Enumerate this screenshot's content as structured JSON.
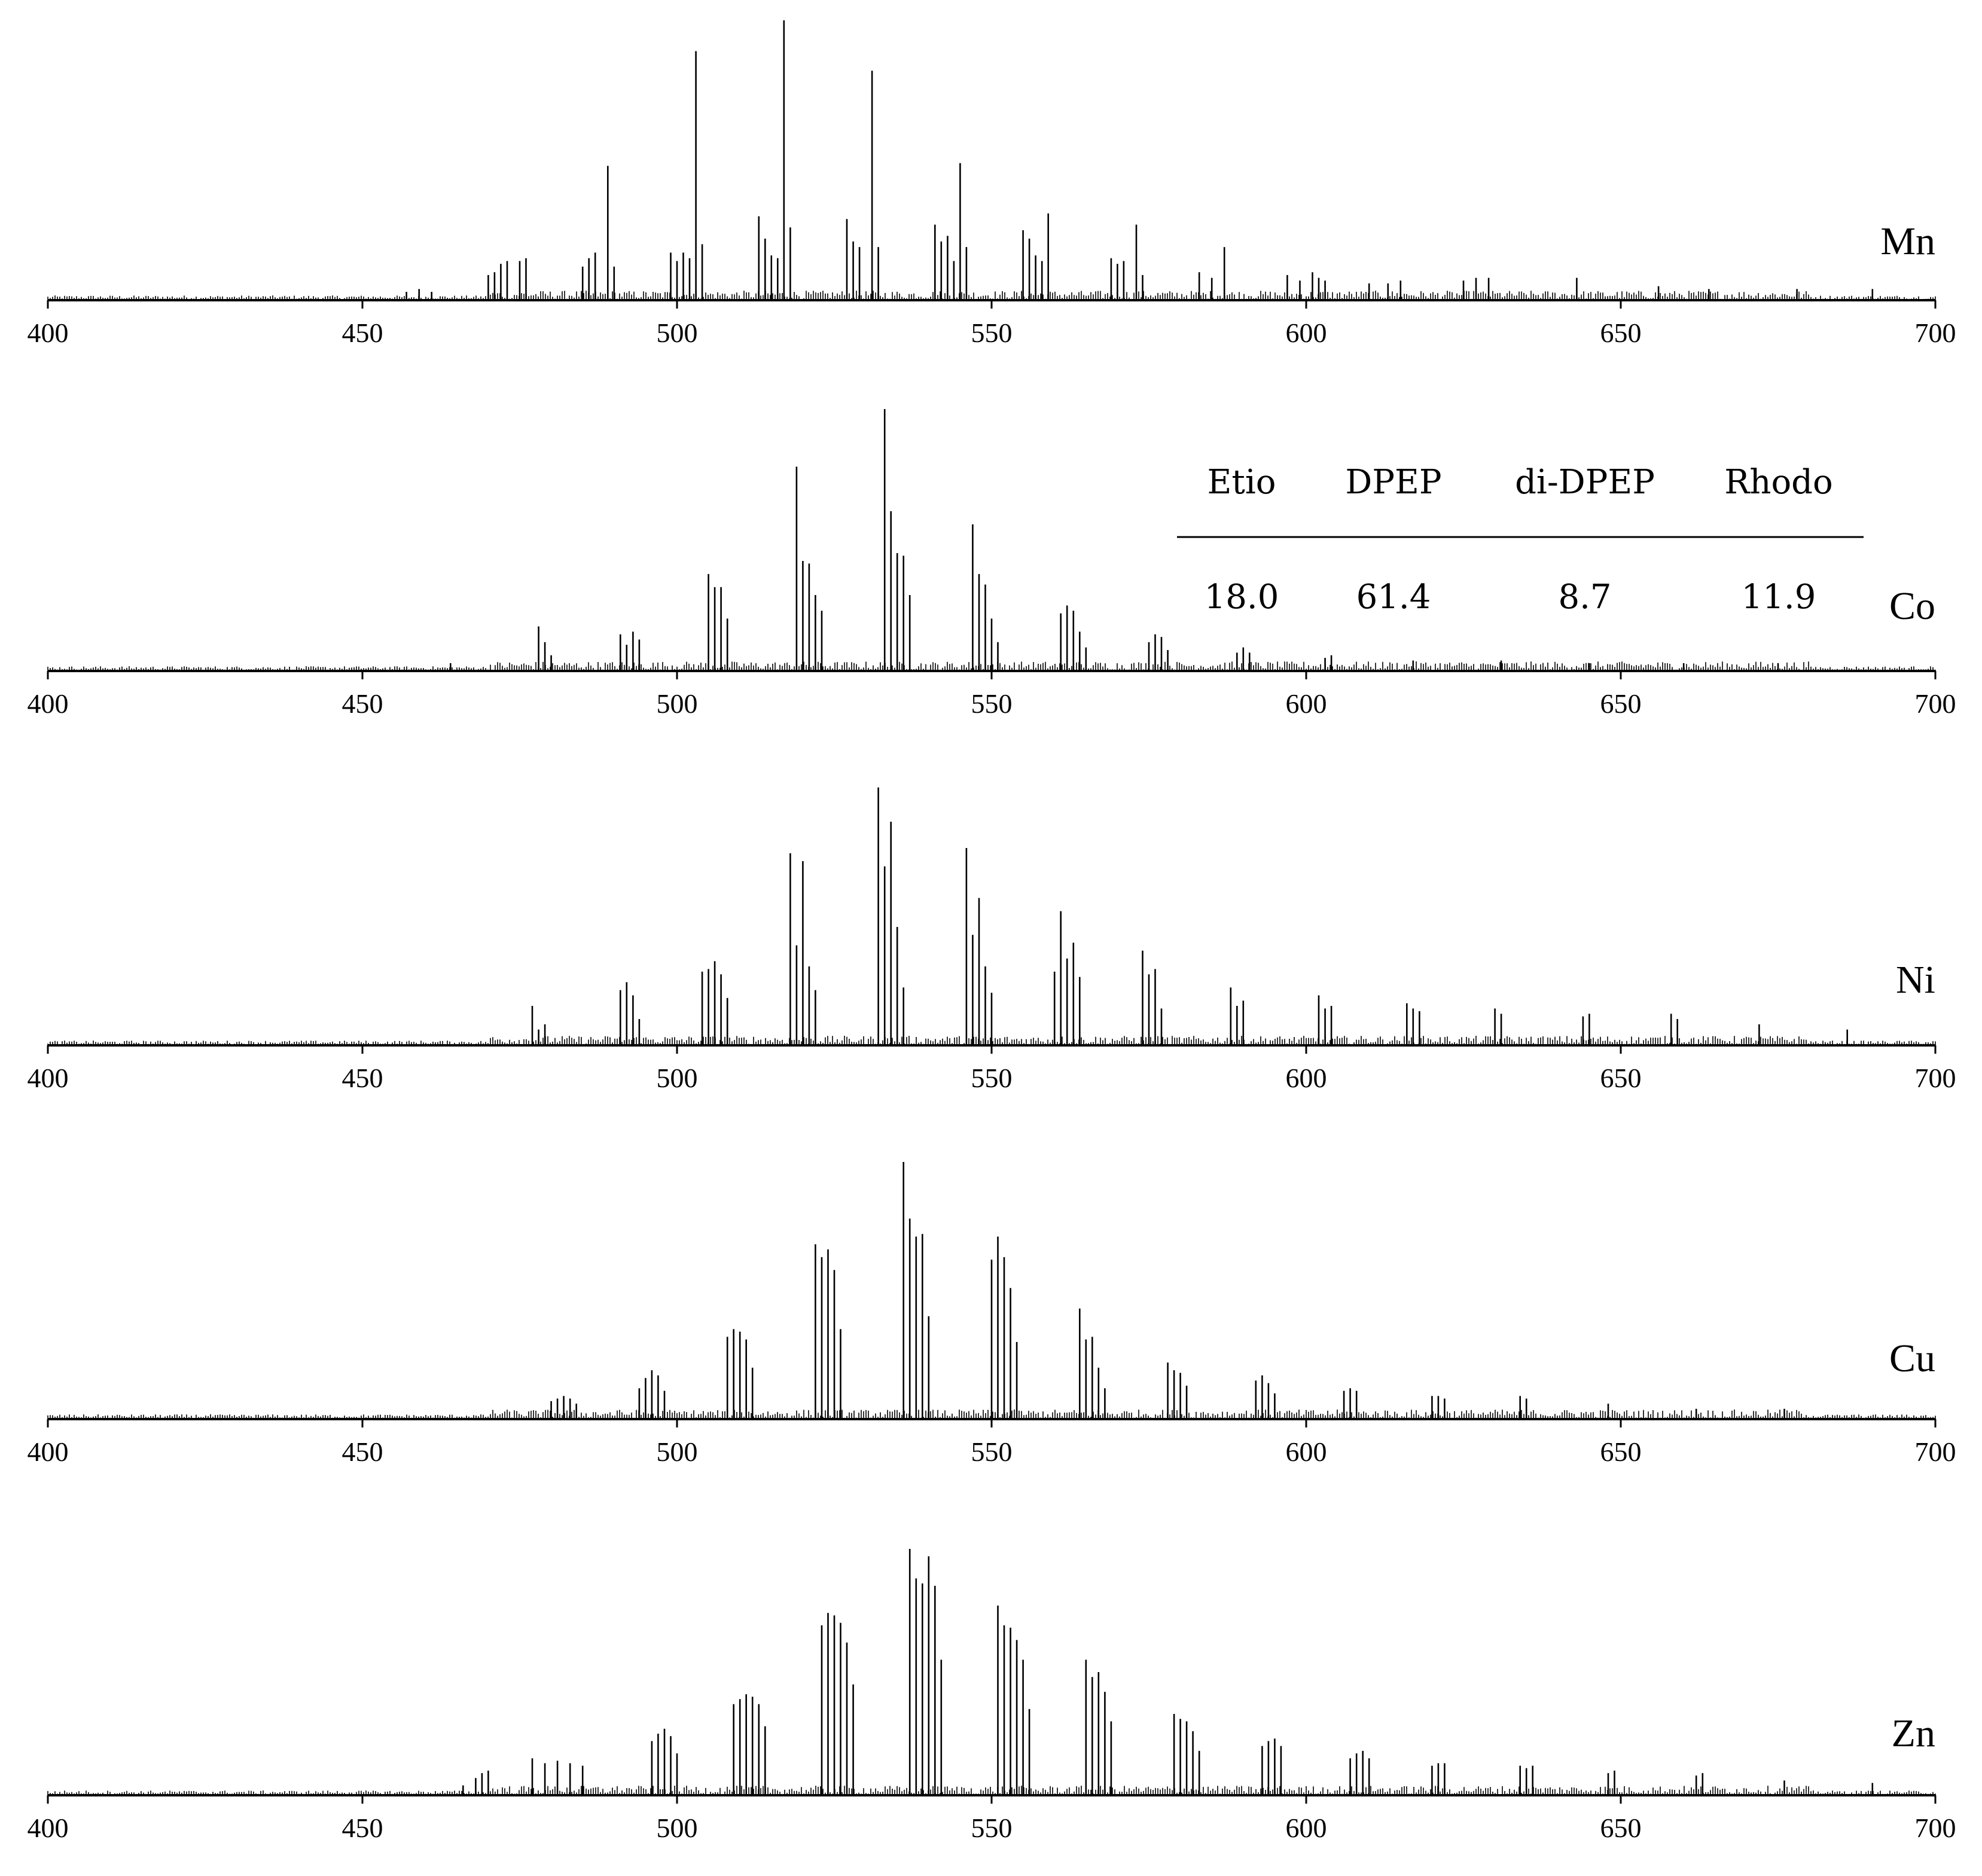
{
  "chart_data": [
    {
      "type": "line",
      "series_name": "Mn",
      "xlim": [
        400,
        700
      ],
      "x_ticks": [
        400,
        450,
        500,
        550,
        600,
        650,
        700
      ],
      "peaks": [
        [
          457,
          0.03
        ],
        [
          459,
          0.04
        ],
        [
          461,
          0.03
        ],
        [
          470,
          0.09
        ],
        [
          471,
          0.1
        ],
        [
          472,
          0.13
        ],
        [
          473,
          0.14
        ],
        [
          475,
          0.14
        ],
        [
          476,
          0.15
        ],
        [
          485,
          0.12
        ],
        [
          486,
          0.15
        ],
        [
          487,
          0.17
        ],
        [
          489,
          0.48
        ],
        [
          490,
          0.12
        ],
        [
          499,
          0.17
        ],
        [
          500,
          0.14
        ],
        [
          501,
          0.17
        ],
        [
          502,
          0.15
        ],
        [
          503,
          0.89
        ],
        [
          504,
          0.2
        ],
        [
          513,
          0.3
        ],
        [
          514,
          0.22
        ],
        [
          515,
          0.16
        ],
        [
          516,
          0.15
        ],
        [
          517,
          1.0
        ],
        [
          518,
          0.26
        ],
        [
          527,
          0.29
        ],
        [
          528,
          0.21
        ],
        [
          529,
          0.19
        ],
        [
          531,
          0.82
        ],
        [
          532,
          0.19
        ],
        [
          541,
          0.27
        ],
        [
          542,
          0.21
        ],
        [
          543,
          0.23
        ],
        [
          544,
          0.14
        ],
        [
          545,
          0.49
        ],
        [
          546,
          0.19
        ],
        [
          555,
          0.25
        ],
        [
          556,
          0.22
        ],
        [
          557,
          0.16
        ],
        [
          558,
          0.14
        ],
        [
          559,
          0.31
        ],
        [
          569,
          0.15
        ],
        [
          570,
          0.13
        ],
        [
          571,
          0.14
        ],
        [
          573,
          0.27
        ],
        [
          574,
          0.09
        ],
        [
          583,
          0.1
        ],
        [
          585,
          0.08
        ],
        [
          587,
          0.19
        ],
        [
          597,
          0.09
        ],
        [
          599,
          0.07
        ],
        [
          601,
          0.1
        ],
        [
          602,
          0.08
        ],
        [
          603,
          0.07
        ],
        [
          610,
          0.06
        ],
        [
          613,
          0.06
        ],
        [
          615,
          0.07
        ],
        [
          625,
          0.07
        ],
        [
          627,
          0.08
        ],
        [
          629,
          0.08
        ],
        [
          643,
          0.08
        ],
        [
          656,
          0.05
        ],
        [
          664,
          0.04
        ],
        [
          678,
          0.04
        ],
        [
          690,
          0.04
        ]
      ]
    },
    {
      "type": "line",
      "series_name": "Co",
      "xlim": [
        400,
        700
      ],
      "x_ticks": [
        400,
        450,
        500,
        550,
        600,
        650,
        700
      ],
      "peaks": [
        [
          464,
          0.03
        ],
        [
          478,
          0.17
        ],
        [
          479,
          0.11
        ],
        [
          480,
          0.06
        ],
        [
          491,
          0.14
        ],
        [
          492,
          0.1
        ],
        [
          493,
          0.15
        ],
        [
          494,
          0.12
        ],
        [
          505,
          0.37
        ],
        [
          506,
          0.32
        ],
        [
          507,
          0.32
        ],
        [
          508,
          0.2
        ],
        [
          519,
          0.78
        ],
        [
          520,
          0.42
        ],
        [
          521,
          0.41
        ],
        [
          522,
          0.29
        ],
        [
          523,
          0.23
        ],
        [
          533,
          1.0
        ],
        [
          534,
          0.61
        ],
        [
          535,
          0.45
        ],
        [
          536,
          0.44
        ],
        [
          537,
          0.29
        ],
        [
          547,
          0.56
        ],
        [
          548,
          0.37
        ],
        [
          549,
          0.33
        ],
        [
          550,
          0.2
        ],
        [
          551,
          0.11
        ],
        [
          561,
          0.22
        ],
        [
          562,
          0.25
        ],
        [
          563,
          0.23
        ],
        [
          564,
          0.15
        ],
        [
          565,
          0.09
        ],
        [
          575,
          0.11
        ],
        [
          576,
          0.14
        ],
        [
          577,
          0.13
        ],
        [
          578,
          0.08
        ],
        [
          589,
          0.07
        ],
        [
          590,
          0.09
        ],
        [
          591,
          0.07
        ],
        [
          603,
          0.05
        ],
        [
          604,
          0.06
        ],
        [
          617,
          0.04
        ],
        [
          631,
          0.04
        ],
        [
          645,
          0.03
        ],
        [
          660,
          0.03
        ],
        [
          675,
          0.03
        ]
      ]
    },
    {
      "type": "line",
      "series_name": "Ni",
      "xlim": [
        400,
        700
      ],
      "x_ticks": [
        400,
        450,
        500,
        550,
        600,
        650,
        700
      ],
      "peaks": [
        [
          477,
          0.15
        ],
        [
          478,
          0.06
        ],
        [
          479,
          0.08
        ],
        [
          491,
          0.21
        ],
        [
          492,
          0.24
        ],
        [
          493,
          0.19
        ],
        [
          494,
          0.1
        ],
        [
          504,
          0.28
        ],
        [
          505,
          0.29
        ],
        [
          506,
          0.32
        ],
        [
          507,
          0.27
        ],
        [
          508,
          0.18
        ],
        [
          518,
          0.73
        ],
        [
          519,
          0.38
        ],
        [
          520,
          0.7
        ],
        [
          521,
          0.3
        ],
        [
          522,
          0.21
        ],
        [
          532,
          0.98
        ],
        [
          533,
          0.68
        ],
        [
          534,
          0.85
        ],
        [
          535,
          0.45
        ],
        [
          536,
          0.22
        ],
        [
          546,
          0.75
        ],
        [
          547,
          0.42
        ],
        [
          548,
          0.56
        ],
        [
          549,
          0.3
        ],
        [
          550,
          0.2
        ],
        [
          560,
          0.28
        ],
        [
          561,
          0.51
        ],
        [
          562,
          0.33
        ],
        [
          563,
          0.39
        ],
        [
          564,
          0.26
        ],
        [
          574,
          0.36
        ],
        [
          575,
          0.27
        ],
        [
          576,
          0.29
        ],
        [
          577,
          0.14
        ],
        [
          588,
          0.22
        ],
        [
          589,
          0.15
        ],
        [
          590,
          0.17
        ],
        [
          602,
          0.19
        ],
        [
          603,
          0.14
        ],
        [
          604,
          0.15
        ],
        [
          616,
          0.16
        ],
        [
          617,
          0.14
        ],
        [
          618,
          0.13
        ],
        [
          630,
          0.14
        ],
        [
          631,
          0.12
        ],
        [
          644,
          0.11
        ],
        [
          645,
          0.12
        ],
        [
          658,
          0.12
        ],
        [
          659,
          0.1
        ],
        [
          672,
          0.08
        ],
        [
          686,
          0.06
        ]
      ]
    },
    {
      "type": "line",
      "series_name": "Cu",
      "xlim": [
        400,
        700
      ],
      "x_ticks": [
        400,
        450,
        500,
        550,
        600,
        650,
        700
      ],
      "peaks": [
        [
          480,
          0.07
        ],
        [
          481,
          0.08
        ],
        [
          482,
          0.09
        ],
        [
          483,
          0.08
        ],
        [
          484,
          0.06
        ],
        [
          494,
          0.12
        ],
        [
          495,
          0.16
        ],
        [
          496,
          0.19
        ],
        [
          497,
          0.17
        ],
        [
          498,
          0.11
        ],
        [
          508,
          0.32
        ],
        [
          509,
          0.35
        ],
        [
          510,
          0.34
        ],
        [
          511,
          0.31
        ],
        [
          512,
          0.2
        ],
        [
          522,
          0.68
        ],
        [
          523,
          0.63
        ],
        [
          524,
          0.66
        ],
        [
          525,
          0.58
        ],
        [
          526,
          0.35
        ],
        [
          536,
          1.0
        ],
        [
          537,
          0.78
        ],
        [
          538,
          0.71
        ],
        [
          539,
          0.72
        ],
        [
          540,
          0.4
        ],
        [
          550,
          0.62
        ],
        [
          551,
          0.71
        ],
        [
          552,
          0.63
        ],
        [
          553,
          0.51
        ],
        [
          554,
          0.3
        ],
        [
          564,
          0.43
        ],
        [
          565,
          0.31
        ],
        [
          566,
          0.32
        ],
        [
          567,
          0.2
        ],
        [
          568,
          0.12
        ],
        [
          578,
          0.22
        ],
        [
          579,
          0.19
        ],
        [
          580,
          0.18
        ],
        [
          581,
          0.13
        ],
        [
          592,
          0.15
        ],
        [
          593,
          0.17
        ],
        [
          594,
          0.14
        ],
        [
          595,
          0.1
        ],
        [
          606,
          0.11
        ],
        [
          607,
          0.12
        ],
        [
          608,
          0.11
        ],
        [
          620,
          0.09
        ],
        [
          621,
          0.09
        ],
        [
          622,
          0.08
        ],
        [
          634,
          0.09
        ],
        [
          635,
          0.08
        ],
        [
          648,
          0.06
        ],
        [
          662,
          0.04
        ],
        [
          676,
          0.04
        ]
      ]
    },
    {
      "type": "line",
      "series_name": "Zn",
      "xlim": [
        400,
        700
      ],
      "x_ticks": [
        400,
        450,
        500,
        550,
        600,
        650,
        700
      ],
      "peaks": [
        [
          466,
          0.04
        ],
        [
          468,
          0.07
        ],
        [
          469,
          0.09
        ],
        [
          470,
          0.1
        ],
        [
          477,
          0.15
        ],
        [
          479,
          0.13
        ],
        [
          481,
          0.14
        ],
        [
          483,
          0.13
        ],
        [
          485,
          0.12
        ],
        [
          496,
          0.22
        ],
        [
          497,
          0.25
        ],
        [
          498,
          0.27
        ],
        [
          499,
          0.24
        ],
        [
          500,
          0.17
        ],
        [
          509,
          0.37
        ],
        [
          510,
          0.39
        ],
        [
          511,
          0.41
        ],
        [
          512,
          0.4
        ],
        [
          513,
          0.37
        ],
        [
          514,
          0.28
        ],
        [
          523,
          0.69
        ],
        [
          524,
          0.74
        ],
        [
          525,
          0.73
        ],
        [
          526,
          0.7
        ],
        [
          527,
          0.62
        ],
        [
          528,
          0.45
        ],
        [
          537,
          1.0
        ],
        [
          538,
          0.88
        ],
        [
          539,
          0.86
        ],
        [
          540,
          0.97
        ],
        [
          541,
          0.85
        ],
        [
          542,
          0.55
        ],
        [
          551,
          0.77
        ],
        [
          552,
          0.69
        ],
        [
          553,
          0.68
        ],
        [
          554,
          0.63
        ],
        [
          555,
          0.55
        ],
        [
          556,
          0.35
        ],
        [
          565,
          0.55
        ],
        [
          566,
          0.48
        ],
        [
          567,
          0.5
        ],
        [
          568,
          0.42
        ],
        [
          569,
          0.3
        ],
        [
          579,
          0.33
        ],
        [
          580,
          0.31
        ],
        [
          581,
          0.3
        ],
        [
          582,
          0.26
        ],
        [
          583,
          0.18
        ],
        [
          593,
          0.2
        ],
        [
          594,
          0.22
        ],
        [
          595,
          0.23
        ],
        [
          596,
          0.2
        ],
        [
          607,
          0.15
        ],
        [
          608,
          0.17
        ],
        [
          609,
          0.18
        ],
        [
          610,
          0.15
        ],
        [
          620,
          0.12
        ],
        [
          621,
          0.13
        ],
        [
          622,
          0.13
        ],
        [
          634,
          0.12
        ],
        [
          635,
          0.11
        ],
        [
          636,
          0.12
        ],
        [
          648,
          0.09
        ],
        [
          649,
          0.1
        ],
        [
          662,
          0.08
        ],
        [
          663,
          0.09
        ],
        [
          676,
          0.06
        ],
        [
          690,
          0.05
        ]
      ]
    }
  ],
  "inset_table": {
    "headers": [
      "Etio",
      "DPEP",
      "di-DPEP",
      "Rhodo"
    ],
    "values": [
      "18.0",
      "61.4",
      "8.7",
      "11.9"
    ]
  },
  "colors": {
    "line": "#000000",
    "background": "#ffffff"
  }
}
